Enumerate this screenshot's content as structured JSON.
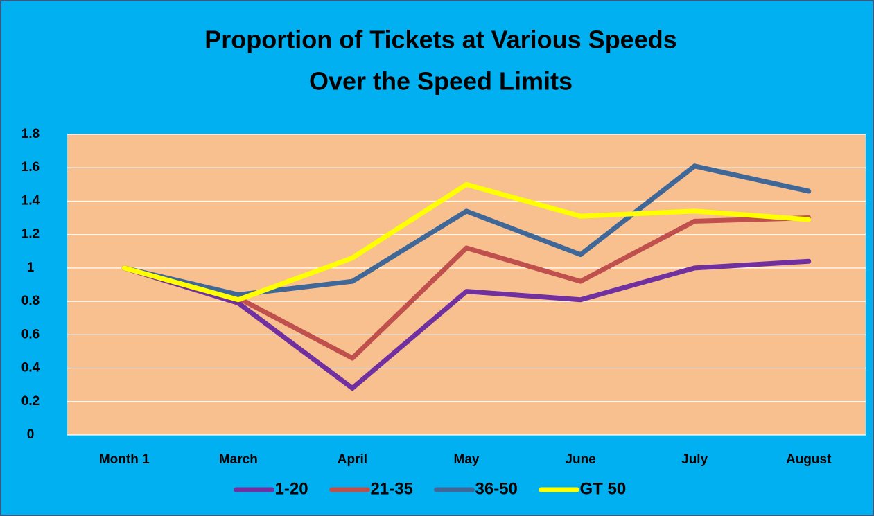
{
  "chart_data": {
    "type": "line",
    "title": [
      "Proportion of Tickets at Various Speeds",
      "Over the Speed Limits"
    ],
    "categories": [
      "Month 1",
      "March",
      "April",
      "May",
      "June",
      "July",
      "August"
    ],
    "series": [
      {
        "name": "1-20",
        "color": "#7030a0",
        "values": [
          1,
          0.79,
          0.28,
          0.86,
          0.81,
          1.0,
          1.04
        ]
      },
      {
        "name": "21-35",
        "color": "#c0504d",
        "values": [
          1,
          0.82,
          0.46,
          1.12,
          0.92,
          1.28,
          1.3
        ]
      },
      {
        "name": "36-50",
        "color": "#3f6797",
        "values": [
          1,
          0.84,
          0.92,
          1.34,
          1.08,
          1.61,
          1.46
        ]
      },
      {
        "name": "GT 50",
        "color": "#ffff00",
        "values": [
          1,
          0.81,
          1.06,
          1.5,
          1.31,
          1.34,
          1.29
        ]
      }
    ],
    "ylim": [
      0,
      1.8
    ],
    "yticks": [
      0,
      0.2,
      0.4,
      0.6,
      0.8,
      1,
      1.2,
      1.4,
      1.6,
      1.8
    ],
    "grid": true,
    "legend": "bottom"
  }
}
